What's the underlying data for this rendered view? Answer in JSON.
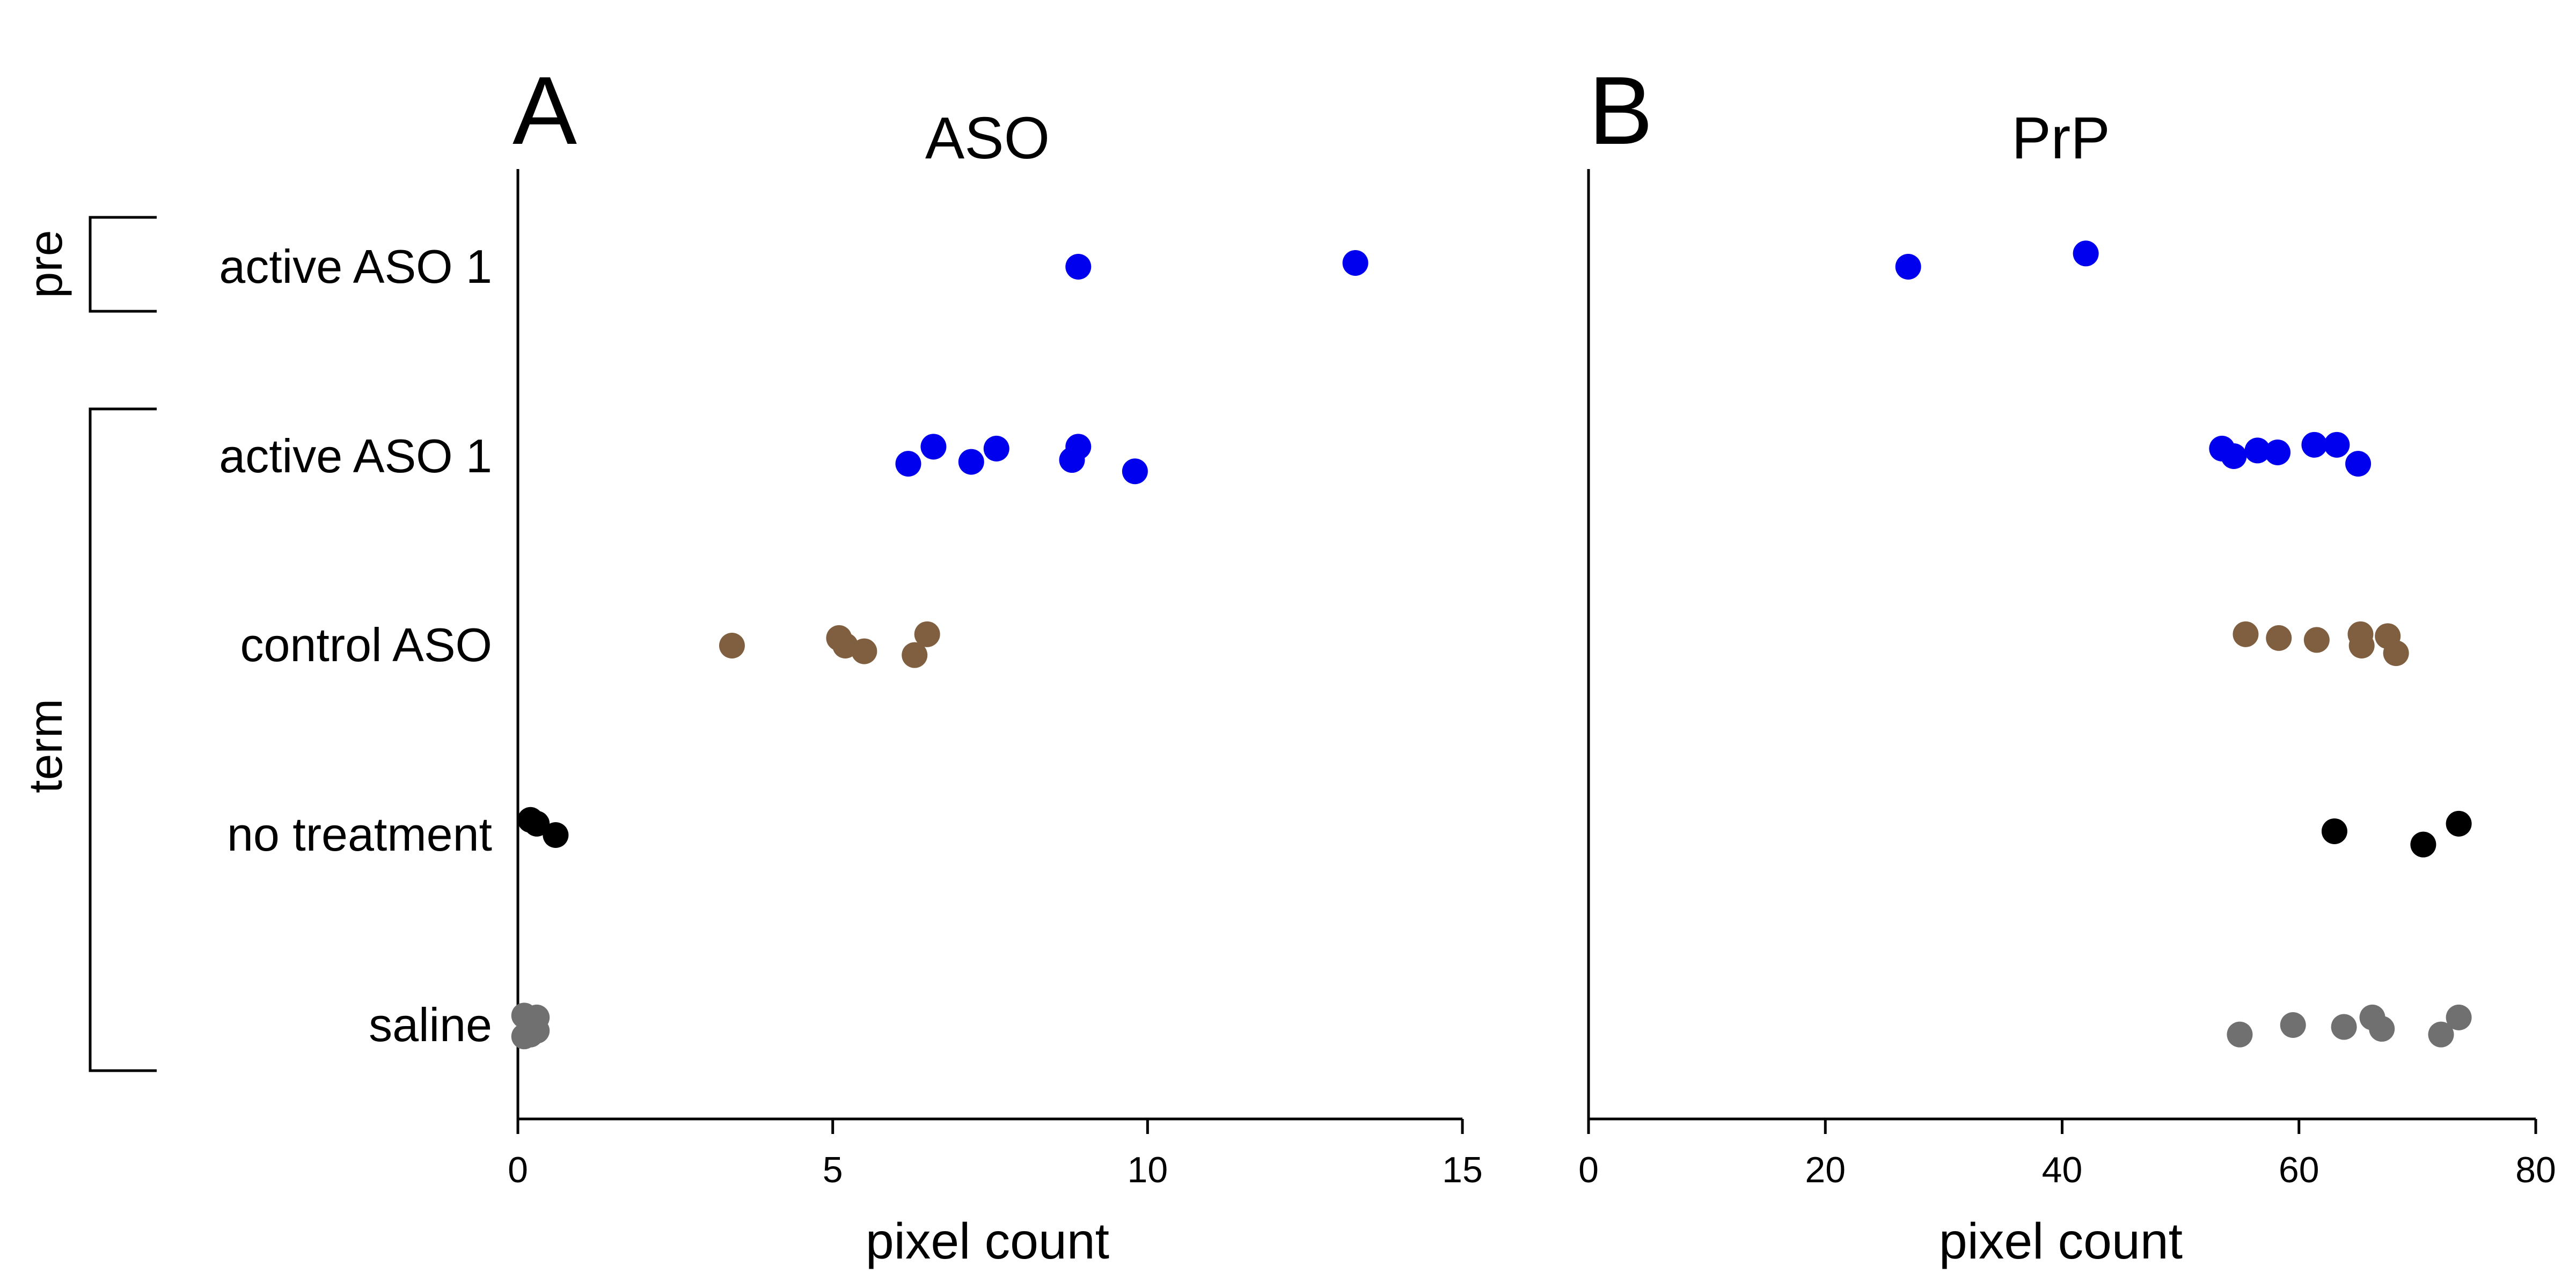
{
  "chart_data": {
    "type": "scatter",
    "categories": [
      "active ASO 1",
      "active ASO 1",
      "control ASO",
      "no treatment",
      "saline"
    ],
    "groups": [
      {
        "label": "pre",
        "categories": [
          0
        ]
      },
      {
        "label": "term",
        "categories": [
          1,
          2,
          3,
          4
        ]
      }
    ],
    "colors": [
      "#0000ee",
      "#0000ee",
      "#7f5f3f",
      "#000000",
      "#707070"
    ],
    "panels": [
      {
        "letter": "A",
        "title": "ASO",
        "xlabel": "pixel count",
        "xlim": [
          0,
          15
        ],
        "xticks": [
          0,
          5,
          10,
          15
        ],
        "points": [
          [
            [
              8.9,
              0.0
            ],
            [
              13.3,
              -0.02
            ]
          ],
          [
            [
              6.2,
              0.04
            ],
            [
              6.6,
              -0.05
            ],
            [
              7.2,
              0.03
            ],
            [
              7.6,
              -0.04
            ],
            [
              8.8,
              0.02
            ],
            [
              8.9,
              -0.05
            ],
            [
              9.8,
              0.08
            ]
          ],
          [
            [
              3.4,
              0.0
            ],
            [
              5.1,
              -0.04
            ],
            [
              5.2,
              0.0
            ],
            [
              5.5,
              0.03
            ],
            [
              6.3,
              0.05
            ],
            [
              6.5,
              -0.06
            ]
          ],
          [
            [
              0.2,
              -0.08
            ],
            [
              0.3,
              -0.06
            ],
            [
              0.6,
              0.0
            ]
          ],
          [
            [
              0.1,
              -0.05
            ],
            [
              0.2,
              0.0
            ],
            [
              0.3,
              0.03
            ],
            [
              0.1,
              0.06
            ],
            [
              0.2,
              0.05
            ],
            [
              0.3,
              -0.04
            ]
          ]
        ]
      },
      {
        "letter": "B",
        "title": "PrP",
        "xlabel": "pixel count",
        "xlim": [
          0,
          80
        ],
        "xticks": [
          0,
          20,
          40,
          60,
          80
        ],
        "points": [
          [
            [
              27.0,
              0.0
            ],
            [
              42.0,
              -0.07
            ]
          ],
          [
            [
              53.5,
              -0.04
            ],
            [
              54.5,
              0.0
            ],
            [
              56.5,
              -0.03
            ],
            [
              58.2,
              -0.02
            ],
            [
              61.3,
              -0.06
            ],
            [
              63.2,
              -0.06
            ],
            [
              65.0,
              0.04
            ]
          ],
          [
            [
              55.5,
              -0.06
            ],
            [
              58.3,
              -0.04
            ],
            [
              61.5,
              -0.03
            ],
            [
              65.2,
              -0.06
            ],
            [
              65.3,
              0.0
            ],
            [
              67.5,
              -0.05
            ],
            [
              68.2,
              0.04
            ]
          ],
          [
            [
              63.0,
              -0.02
            ],
            [
              70.5,
              0.05
            ],
            [
              73.5,
              -0.06
            ]
          ],
          [
            [
              55.0,
              0.05
            ],
            [
              59.5,
              0.0
            ],
            [
              63.8,
              0.01
            ],
            [
              66.2,
              -0.04
            ],
            [
              67.0,
              0.02
            ],
            [
              72.0,
              0.05
            ],
            [
              73.5,
              -0.04
            ]
          ]
        ]
      }
    ]
  }
}
